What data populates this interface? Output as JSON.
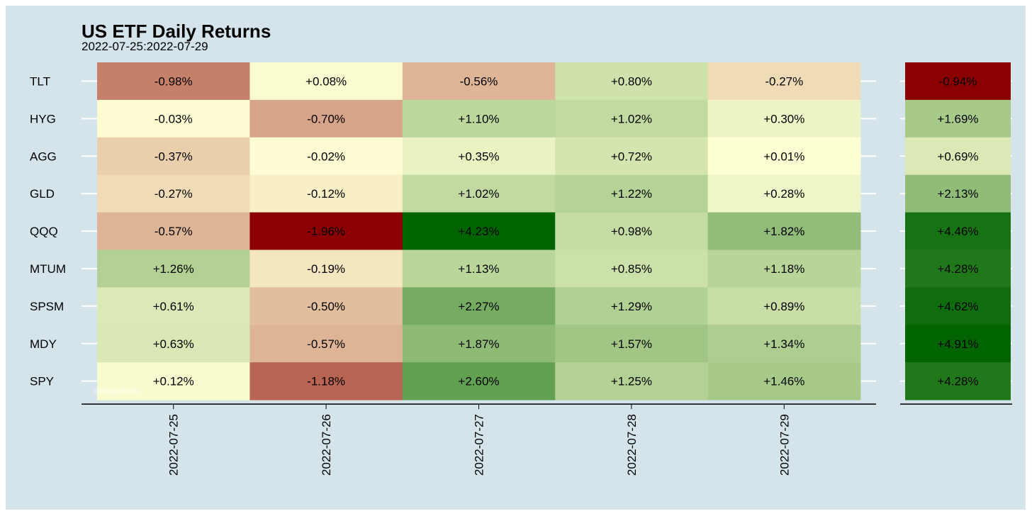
{
  "chart_data": {
    "type": "heatmap",
    "title": "US ETF Daily Returns",
    "subtitle": "2022-07-25:2022-07-29",
    "watermark": "@StockViz",
    "rows": [
      "TLT",
      "HYG",
      "AGG",
      "GLD",
      "QQQ",
      "MTUM",
      "SPSM",
      "MDY",
      "SPY"
    ],
    "columns": [
      "2022-07-25",
      "2022-07-26",
      "2022-07-27",
      "2022-07-28",
      "2022-07-29"
    ],
    "values": [
      [
        -0.98,
        0.08,
        -0.56,
        0.8,
        -0.27
      ],
      [
        -0.03,
        -0.7,
        1.1,
        1.02,
        0.3
      ],
      [
        -0.37,
        -0.02,
        0.35,
        0.72,
        0.01
      ],
      [
        -0.27,
        -0.12,
        1.02,
        1.22,
        0.28
      ],
      [
        -0.57,
        -1.96,
        4.23,
        0.98,
        1.82
      ],
      [
        1.26,
        -0.19,
        1.13,
        0.85,
        1.18
      ],
      [
        0.61,
        -0.5,
        2.27,
        1.29,
        0.89
      ],
      [
        0.63,
        -0.57,
        1.87,
        1.57,
        1.34
      ],
      [
        0.12,
        -1.18,
        2.6,
        1.25,
        1.46
      ]
    ],
    "labels": [
      [
        "-0.98%",
        "+0.08%",
        "-0.56%",
        "+0.80%",
        "-0.27%"
      ],
      [
        "-0.03%",
        "-0.70%",
        "+1.10%",
        "+1.02%",
        "+0.30%"
      ],
      [
        "-0.37%",
        "-0.02%",
        "+0.35%",
        "+0.72%",
        "+0.01%"
      ],
      [
        "-0.27%",
        "-0.12%",
        "+1.02%",
        "+1.22%",
        "+0.28%"
      ],
      [
        "-0.57%",
        "-1.96%",
        "+4.23%",
        "+0.98%",
        "+1.82%"
      ],
      [
        "+1.26%",
        "-0.19%",
        "+1.13%",
        "+0.85%",
        "+1.18%"
      ],
      [
        "+0.61%",
        "-0.50%",
        "+2.27%",
        "+1.29%",
        "+0.89%"
      ],
      [
        "+0.63%",
        "-0.57%",
        "+1.87%",
        "+1.57%",
        "+1.34%"
      ],
      [
        "+0.12%",
        "-1.18%",
        "+2.60%",
        "+1.25%",
        "+1.46%"
      ]
    ],
    "totals": [
      -0.94,
      1.69,
      0.69,
      2.13,
      4.46,
      4.28,
      4.62,
      4.91,
      4.28
    ],
    "total_labels": [
      "-0.94%",
      "+1.69%",
      "+0.69%",
      "+2.13%",
      "+4.46%",
      "+4.28%",
      "+4.62%",
      "+4.91%",
      "+4.28%"
    ],
    "colors": {
      "background": "#d5e4eb",
      "negative": "#8b0000",
      "neutral": "#ffffd4",
      "positive": "#006400"
    }
  }
}
